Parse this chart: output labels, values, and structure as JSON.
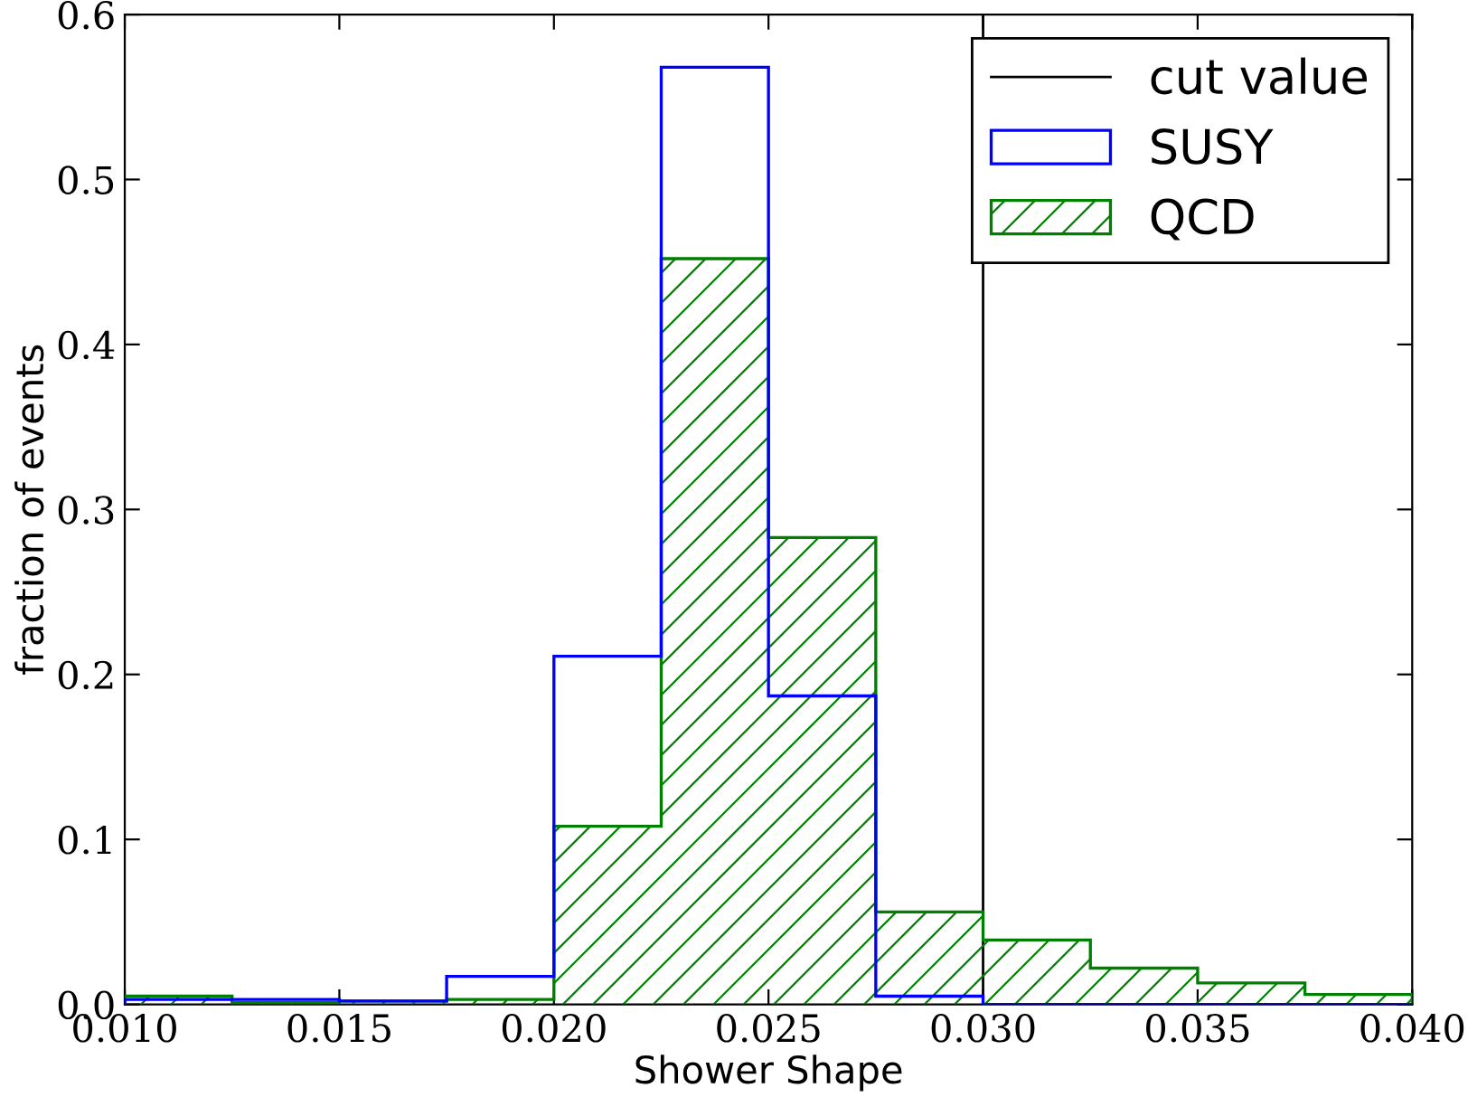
{
  "chart_data": {
    "type": "histogram",
    "xlabel": "Shower Shape",
    "ylabel": "fraction of events",
    "bins": [
      0.01,
      0.0125,
      0.015,
      0.0175,
      0.02,
      0.0225,
      0.025,
      0.0275,
      0.03,
      0.0325,
      0.035,
      0.0375,
      0.04
    ],
    "series": [
      {
        "name": "SUSY",
        "color": "#0000ff",
        "values": [
          0.003,
          0.003,
          0.002,
          0.017,
          0.211,
          0.568,
          0.187,
          0.005,
          0,
          0,
          0,
          0
        ]
      },
      {
        "name": "QCD",
        "color": "#008000",
        "values": [
          0.005,
          0.001,
          0.002,
          0.003,
          0.108,
          0.452,
          0.283,
          0.056,
          0.039,
          0.022,
          0.013,
          0.006
        ]
      }
    ],
    "ref_lines": [
      {
        "axis": "x",
        "value": 0.03,
        "label": "cut value",
        "color": "#000000"
      }
    ],
    "xlim": [
      0.01,
      0.04
    ],
    "ylim": [
      0,
      0.6
    ],
    "xticks": [
      {
        "value": 0.01,
        "label": "0.010"
      },
      {
        "value": 0.015,
        "label": "0.015"
      },
      {
        "value": 0.02,
        "label": "0.020"
      },
      {
        "value": 0.025,
        "label": "0.025"
      },
      {
        "value": 0.03,
        "label": "0.030"
      },
      {
        "value": 0.035,
        "label": "0.035"
      },
      {
        "value": 0.04,
        "label": "0.040"
      }
    ],
    "yticks": [
      {
        "value": 0,
        "label": "0.0"
      },
      {
        "value": 0.1,
        "label": "0.1"
      },
      {
        "value": 0.2,
        "label": "0.2"
      },
      {
        "value": 0.3,
        "label": "0.3"
      },
      {
        "value": 0.4,
        "label": "0.4"
      },
      {
        "value": 0.5,
        "label": "0.5"
      },
      {
        "value": 0.6,
        "label": "0.6"
      }
    ],
    "grid": false,
    "legend": "top right"
  }
}
